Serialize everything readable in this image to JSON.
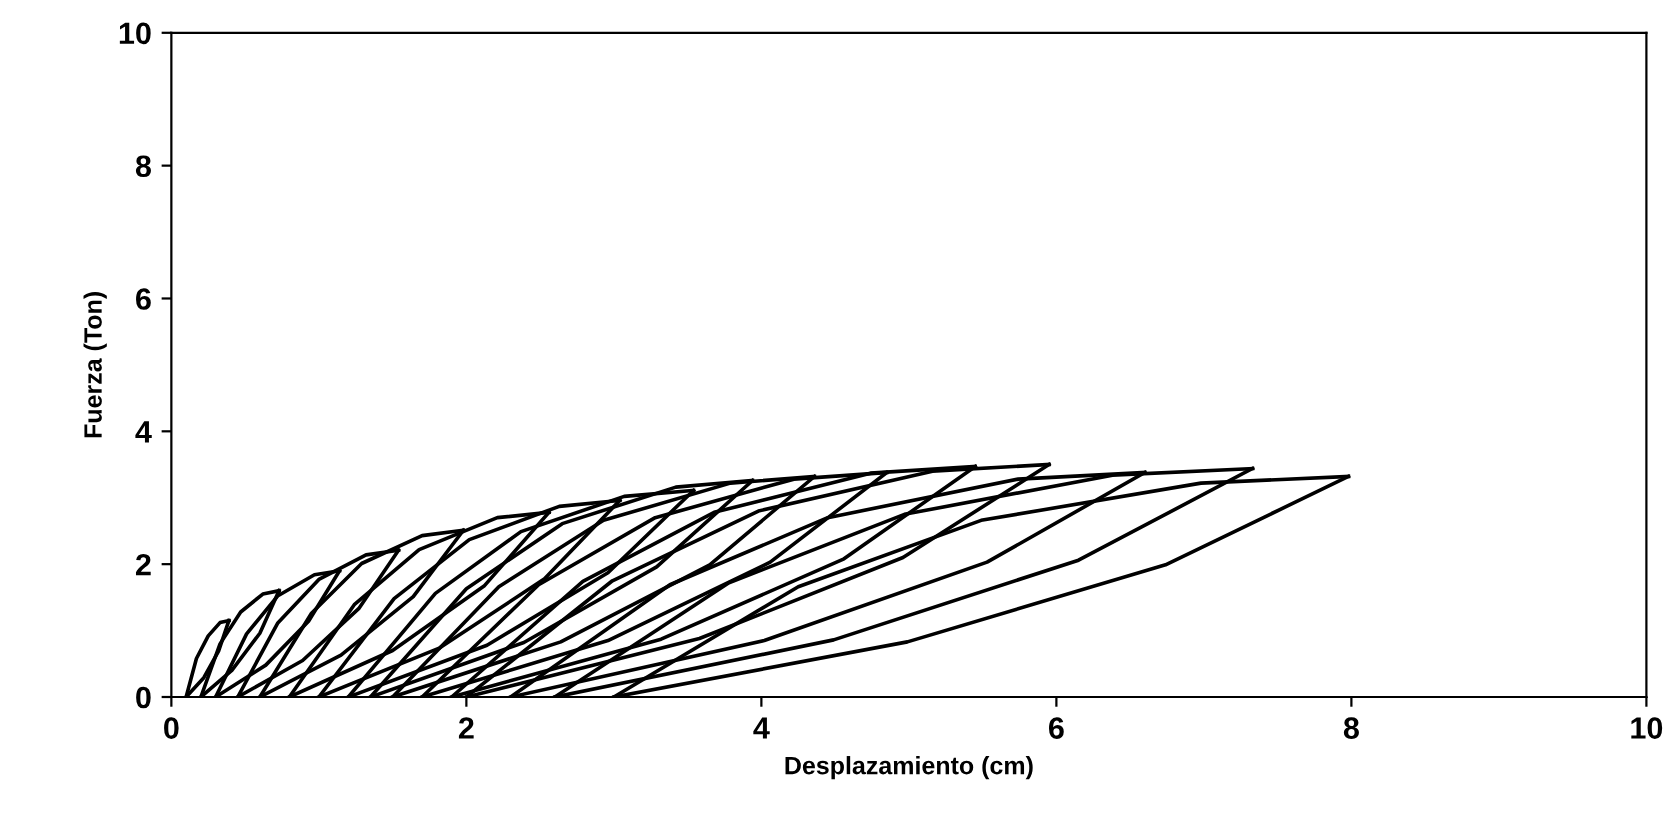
{
  "chart_data": {
    "type": "line",
    "xlabel": "Desplazamiento (cm)",
    "ylabel": "Fuerza (Ton)",
    "xlim": [
      0,
      10
    ],
    "ylim": [
      0,
      10
    ],
    "xticks": [
      0,
      2,
      4,
      6,
      8,
      10
    ],
    "yticks": [
      0,
      2,
      4,
      6,
      8,
      10
    ],
    "grid": false,
    "marker": "none",
    "line_style": "solid",
    "series": [
      {
        "color": "#000000",
        "x": [
          0.1,
          0.17,
          0.25,
          0.33,
          0.39
        ],
        "values": [
          0,
          0.58,
          0.92,
          1.12,
          1.15
        ]
      },
      {
        "color": "#000000",
        "x": [
          0.39,
          0.32,
          0.22,
          0.1
        ],
        "values": [
          1.15,
          0.69,
          0.29,
          0
        ]
      },
      {
        "color": "#000000",
        "x": [
          0.2,
          0.33,
          0.47,
          0.62,
          0.73
        ],
        "values": [
          0,
          0.8,
          1.28,
          1.55,
          1.6
        ]
      },
      {
        "color": "#000000",
        "x": [
          0.73,
          0.6,
          0.41,
          0.2
        ],
        "values": [
          1.6,
          0.96,
          0.4,
          0
        ]
      },
      {
        "color": "#000000",
        "x": [
          0.3,
          0.51,
          0.72,
          0.97,
          1.14
        ],
        "values": [
          0,
          0.95,
          1.52,
          1.84,
          1.9
        ]
      },
      {
        "color": "#000000",
        "x": [
          1.14,
          0.93,
          0.64,
          0.3
        ],
        "values": [
          1.9,
          1.14,
          0.48,
          0
        ]
      },
      {
        "color": "#000000",
        "x": [
          0.45,
          0.72,
          1.0,
          1.32,
          1.54
        ],
        "values": [
          0,
          1.11,
          1.77,
          2.14,
          2.21
        ]
      },
      {
        "color": "#000000",
        "x": [
          1.54,
          1.27,
          0.89,
          0.45
        ],
        "values": [
          2.21,
          1.33,
          0.55,
          0
        ]
      },
      {
        "color": "#000000",
        "x": [
          0.6,
          0.95,
          1.29,
          1.7,
          1.98
        ],
        "values": [
          0,
          1.26,
          2.01,
          2.43,
          2.51
        ]
      },
      {
        "color": "#000000",
        "x": [
          1.98,
          1.64,
          1.15,
          0.6
        ],
        "values": [
          2.51,
          1.51,
          0.63,
          0
        ]
      },
      {
        "color": "#000000",
        "x": [
          0.8,
          1.24,
          1.68,
          2.21,
          2.56
        ],
        "values": [
          0,
          1.39,
          2.22,
          2.7,
          2.78
        ]
      },
      {
        "color": "#000000",
        "x": [
          2.56,
          2.12,
          1.5,
          0.8
        ],
        "values": [
          2.78,
          1.67,
          0.7,
          0
        ]
      },
      {
        "color": "#000000",
        "x": [
          1.0,
          1.51,
          2.02,
          2.63,
          3.04
        ],
        "values": [
          0,
          1.48,
          2.37,
          2.87,
          2.96
        ]
      },
      {
        "color": "#000000",
        "x": [
          3.04,
          2.53,
          1.82,
          1.0
        ],
        "values": [
          2.96,
          1.78,
          0.74,
          0
        ]
      },
      {
        "color": "#000000",
        "x": [
          1.2,
          1.79,
          2.37,
          3.07,
          3.54
        ],
        "values": [
          0,
          1.56,
          2.49,
          3.02,
          3.11
        ]
      },
      {
        "color": "#000000",
        "x": [
          3.54,
          2.96,
          2.14,
          1.2
        ],
        "values": [
          3.11,
          1.87,
          0.78,
          0
        ]
      },
      {
        "color": "#000000",
        "x": [
          1.35,
          2.0,
          2.65,
          3.42,
          3.94
        ],
        "values": [
          0,
          1.63,
          2.61,
          3.16,
          3.26
        ]
      },
      {
        "color": "#000000",
        "x": [
          3.94,
          3.29,
          2.39,
          1.35
        ],
        "values": [
          3.26,
          1.96,
          0.82,
          0
        ]
      },
      {
        "color": "#000000",
        "x": [
          1.5,
          2.22,
          2.93,
          3.79,
          4.36
        ],
        "values": [
          0,
          1.66,
          2.66,
          3.22,
          3.32
        ]
      },
      {
        "color": "#000000",
        "x": [
          4.36,
          3.65,
          2.64,
          1.5
        ],
        "values": [
          3.32,
          1.99,
          0.83,
          0
        ]
      },
      {
        "color": "#000000",
        "x": [
          1.7,
          2.49,
          3.28,
          4.22,
          4.85
        ],
        "values": [
          0,
          1.69,
          2.7,
          3.28,
          3.38
        ]
      },
      {
        "color": "#000000",
        "x": [
          4.85,
          4.06,
          2.96,
          1.7
        ],
        "values": [
          3.38,
          2.03,
          0.85,
          0
        ]
      },
      {
        "color": "#000000",
        "x": [
          1.9,
          2.79,
          3.68,
          4.74,
          5.45
        ],
        "values": [
          0,
          1.74,
          2.78,
          3.37,
          3.47
        ]
      },
      {
        "color": "#000000",
        "x": [
          5.45,
          4.56,
          3.32,
          1.9
        ],
        "values": [
          3.47,
          2.08,
          0.87,
          0
        ]
      },
      {
        "color": "#000000",
        "x": [
          2.0,
          2.99,
          3.98,
          5.16,
          5.95
        ],
        "values": [
          0,
          1.75,
          2.8,
          3.4,
          3.5
        ]
      },
      {
        "color": "#000000",
        "x": [
          5.95,
          4.96,
          3.58,
          2.0
        ],
        "values": [
          3.5,
          2.1,
          0.88,
          0
        ]
      },
      {
        "color": "#000000",
        "x": [
          2.3,
          3.38,
          4.45,
          5.74,
          6.6
        ],
        "values": [
          0,
          1.69,
          2.7,
          3.28,
          3.38
        ]
      },
      {
        "color": "#000000",
        "x": [
          6.6,
          5.53,
          4.02,
          2.3
        ],
        "values": [
          3.38,
          2.03,
          0.85,
          0
        ]
      },
      {
        "color": "#000000",
        "x": [
          2.6,
          3.78,
          4.97,
          6.38,
          7.33
        ],
        "values": [
          0,
          1.72,
          2.75,
          3.34,
          3.44
        ]
      },
      {
        "color": "#000000",
        "x": [
          7.33,
          6.15,
          4.49,
          2.6
        ],
        "values": [
          3.44,
          2.06,
          0.86,
          0
        ]
      },
      {
        "color": "#000000",
        "x": [
          3.0,
          4.25,
          5.49,
          6.98,
          7.98
        ],
        "values": [
          0,
          1.66,
          2.66,
          3.22,
          3.32
        ]
      },
      {
        "color": "#000000",
        "x": [
          7.98,
          6.74,
          4.99,
          3.0
        ],
        "values": [
          3.32,
          1.99,
          0.83,
          0
        ]
      }
    ]
  }
}
